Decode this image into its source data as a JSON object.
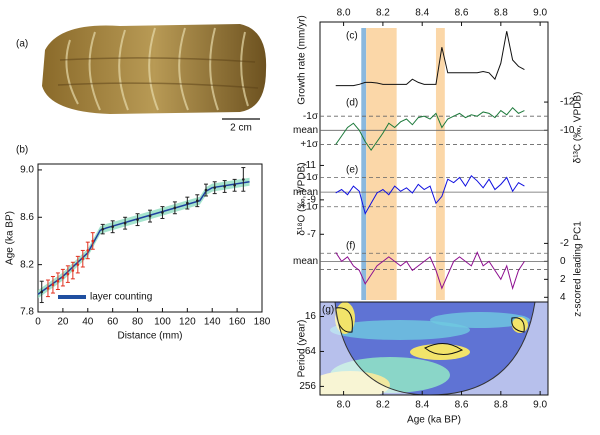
{
  "photo": {
    "panel_label": "(a)",
    "scale_label": "2 cm"
  },
  "chart_data": [
    {
      "type": "scatter",
      "panel_label": "(b)",
      "xlabel": "Distance (mm)",
      "ylabel": "Age (ka BP)",
      "xlim": [
        0,
        180
      ],
      "xticks": [
        0,
        20,
        40,
        60,
        80,
        100,
        120,
        140,
        160,
        180
      ],
      "ylim": [
        7.8,
        9.05
      ],
      "yticks": [
        7.8,
        8.2,
        8.6,
        {
          "value": 9,
          "label": "9.0"
        }
      ],
      "series": [
        {
          "color": "#e0301e",
          "x": [
            8,
            12,
            16,
            20,
            24,
            28,
            32,
            36,
            40,
            44
          ],
          "values": [
            8.0,
            8.03,
            8.06,
            8.09,
            8.12,
            8.15,
            8.2,
            8.25,
            8.32,
            8.4
          ],
          "errors": [
            0.07,
            0.07,
            0.07,
            0.07,
            0.07,
            0.07,
            0.07,
            0.07,
            0.07,
            0.07
          ]
        },
        {
          "color": "#222222",
          "x": [
            3,
            52,
            60,
            70,
            80,
            90,
            100,
            110,
            120,
            128,
            135,
            142,
            150,
            158,
            165
          ],
          "values": [
            7.97,
            8.5,
            8.52,
            8.55,
            8.58,
            8.61,
            8.64,
            8.68,
            8.72,
            8.74,
            8.83,
            8.85,
            8.86,
            8.87,
            8.92
          ],
          "errors": [
            0.09,
            0.04,
            0.05,
            0.05,
            0.05,
            0.05,
            0.05,
            0.05,
            0.05,
            0.05,
            0.05,
            0.05,
            0.05,
            0.05,
            0.1
          ]
        }
      ],
      "model": {
        "color": "#1f3f9f",
        "band_color": "#7fd8b8",
        "x": [
          0,
          20,
          40,
          50,
          55,
          130,
          135,
          140,
          170
        ],
        "values": [
          7.95,
          8.1,
          8.3,
          8.49,
          8.51,
          8.74,
          8.82,
          8.85,
          8.9
        ]
      },
      "annotation": {
        "text": "layer counting",
        "color": "#1f4fa0"
      }
    },
    {
      "type": "line",
      "xlabel": "Age (ka BP)",
      "xlim": [
        7.88,
        9.04
      ],
      "xticks": [
        {
          "value": 8,
          "label": "8.0"
        },
        8.2,
        8.4,
        8.6,
        8.8,
        {
          "value": 9,
          "label": "9.0"
        }
      ],
      "x": [
        7.96,
        7.99,
        8.02,
        8.05,
        8.08,
        8.11,
        8.14,
        8.17,
        8.2,
        8.23,
        8.26,
        8.29,
        8.32,
        8.35,
        8.38,
        8.41,
        8.44,
        8.47,
        8.5,
        8.53,
        8.56,
        8.59,
        8.62,
        8.65,
        8.68,
        8.71,
        8.74,
        8.77,
        8.8,
        8.83,
        8.86,
        8.89,
        8.92
      ],
      "highlights": [
        {
          "range": [
            8.09,
            8.115
          ],
          "color": "#8ab8de"
        },
        {
          "range": [
            8.115,
            8.27
          ],
          "color": "#fbd7a8"
        },
        {
          "range": [
            8.47,
            8.515
          ],
          "color": "#fbd7a8"
        }
      ],
      "panels": [
        {
          "label": "(c)",
          "ylabel": "Growth rate (mm/yr)",
          "ylabel_side": "left",
          "color": "#111111",
          "ylim": [
            0,
            1
          ],
          "values": [
            0.1,
            0.1,
            0.1,
            0.1,
            0.12,
            0.15,
            0.15,
            0.14,
            0.12,
            0.12,
            0.12,
            0.12,
            0.12,
            0.2,
            0.15,
            0.12,
            0.12,
            0.12,
            0.7,
            0.3,
            0.3,
            0.3,
            0.3,
            0.3,
            0.3,
            0.32,
            0.3,
            0.2,
            0.45,
            0.95,
            0.5,
            0.4,
            0.35
          ]
        },
        {
          "label": "(d)",
          "ylabel": "δ¹³C (‰, VPDB)",
          "ylabel_side": "right",
          "tick_side": "right",
          "color": "#1e7a3c",
          "ylim": [
            -7.9,
            -12.5
          ],
          "yticks": [
            -12,
            -10
          ],
          "ref_lines": [
            {
              "value": -11,
              "label": "-1σ"
            },
            {
              "value": -10,
              "label": "mean"
            },
            {
              "value": -9,
              "label": "+1σ"
            }
          ],
          "values": [
            -9,
            -9.6,
            -10.2,
            -10.5,
            -10,
            -9.2,
            -8.6,
            -9.2,
            -9.8,
            -10.5,
            -10.2,
            -10.6,
            -10.8,
            -10.4,
            -10.9,
            -11,
            -10.8,
            -11.2,
            -10.2,
            -10.8,
            -11,
            -11.2,
            -10.9,
            -11.1,
            -11,
            -11.3,
            -11.2,
            -10.9,
            -11.4,
            -11.1,
            -11.6,
            -11.2,
            -11.4
          ]
        },
        {
          "label": "(e)",
          "ylabel": "δ¹⁸O (‰, VPDB)",
          "ylabel_side": "left",
          "tick_side": "left",
          "color": "#1010e0",
          "ylim": [
            -6.9,
            -11.2
          ],
          "yticks": [
            -11,
            -9,
            -7
          ],
          "ref_lines": [
            {
              "value": -10.3,
              "label": "-1σ"
            },
            {
              "value": -9.45,
              "label": "mean"
            },
            {
              "value": -8.6,
              "label": "+1σ"
            }
          ],
          "values": [
            -9.4,
            -9.6,
            -9.3,
            -9.8,
            -9.5,
            -8.2,
            -8.8,
            -9.4,
            -9.6,
            -9.3,
            -9.8,
            -9.5,
            -9.7,
            -9.4,
            -9.9,
            -9.6,
            -9.8,
            -8.8,
            -9.2,
            -10.2,
            -10,
            -10.3,
            -9.8,
            -10.4,
            -10.1,
            -9.7,
            -10.2,
            -9.6,
            -9.9,
            -10.3,
            -9.5,
            -10,
            -9.8
          ]
        },
        {
          "label": "(f)",
          "ylabel": "z-scored leading PC1",
          "ylabel_side": "right",
          "tick_side": "right",
          "color": "#8e1090",
          "ylim": [
            4.3,
            -2.6
          ],
          "yticks": [
            -2,
            0,
            2,
            4
          ],
          "ref_lines": [
            {
              "value": -0.9
            },
            {
              "value": 0,
              "label": "mean"
            },
            {
              "value": 0.9
            }
          ],
          "values": [
            -1,
            0,
            -0.5,
            0.5,
            1,
            2.5,
            1.5,
            0.5,
            0,
            -0.5,
            0,
            0.5,
            0,
            1,
            0.5,
            0,
            -0.5,
            1,
            3,
            1.5,
            0,
            -0.5,
            0,
            0.5,
            -1,
            0.5,
            0,
            1,
            2,
            0.5,
            3,
            1,
            0
          ]
        },
        {
          "label": "(g)",
          "ylabel": "Period (year)",
          "ylabel_side": "left",
          "tick_side": "left",
          "log": true,
          "ylim": [
            360,
            9
          ],
          "yticks": [
            16,
            64,
            256
          ]
        }
      ]
    }
  ]
}
